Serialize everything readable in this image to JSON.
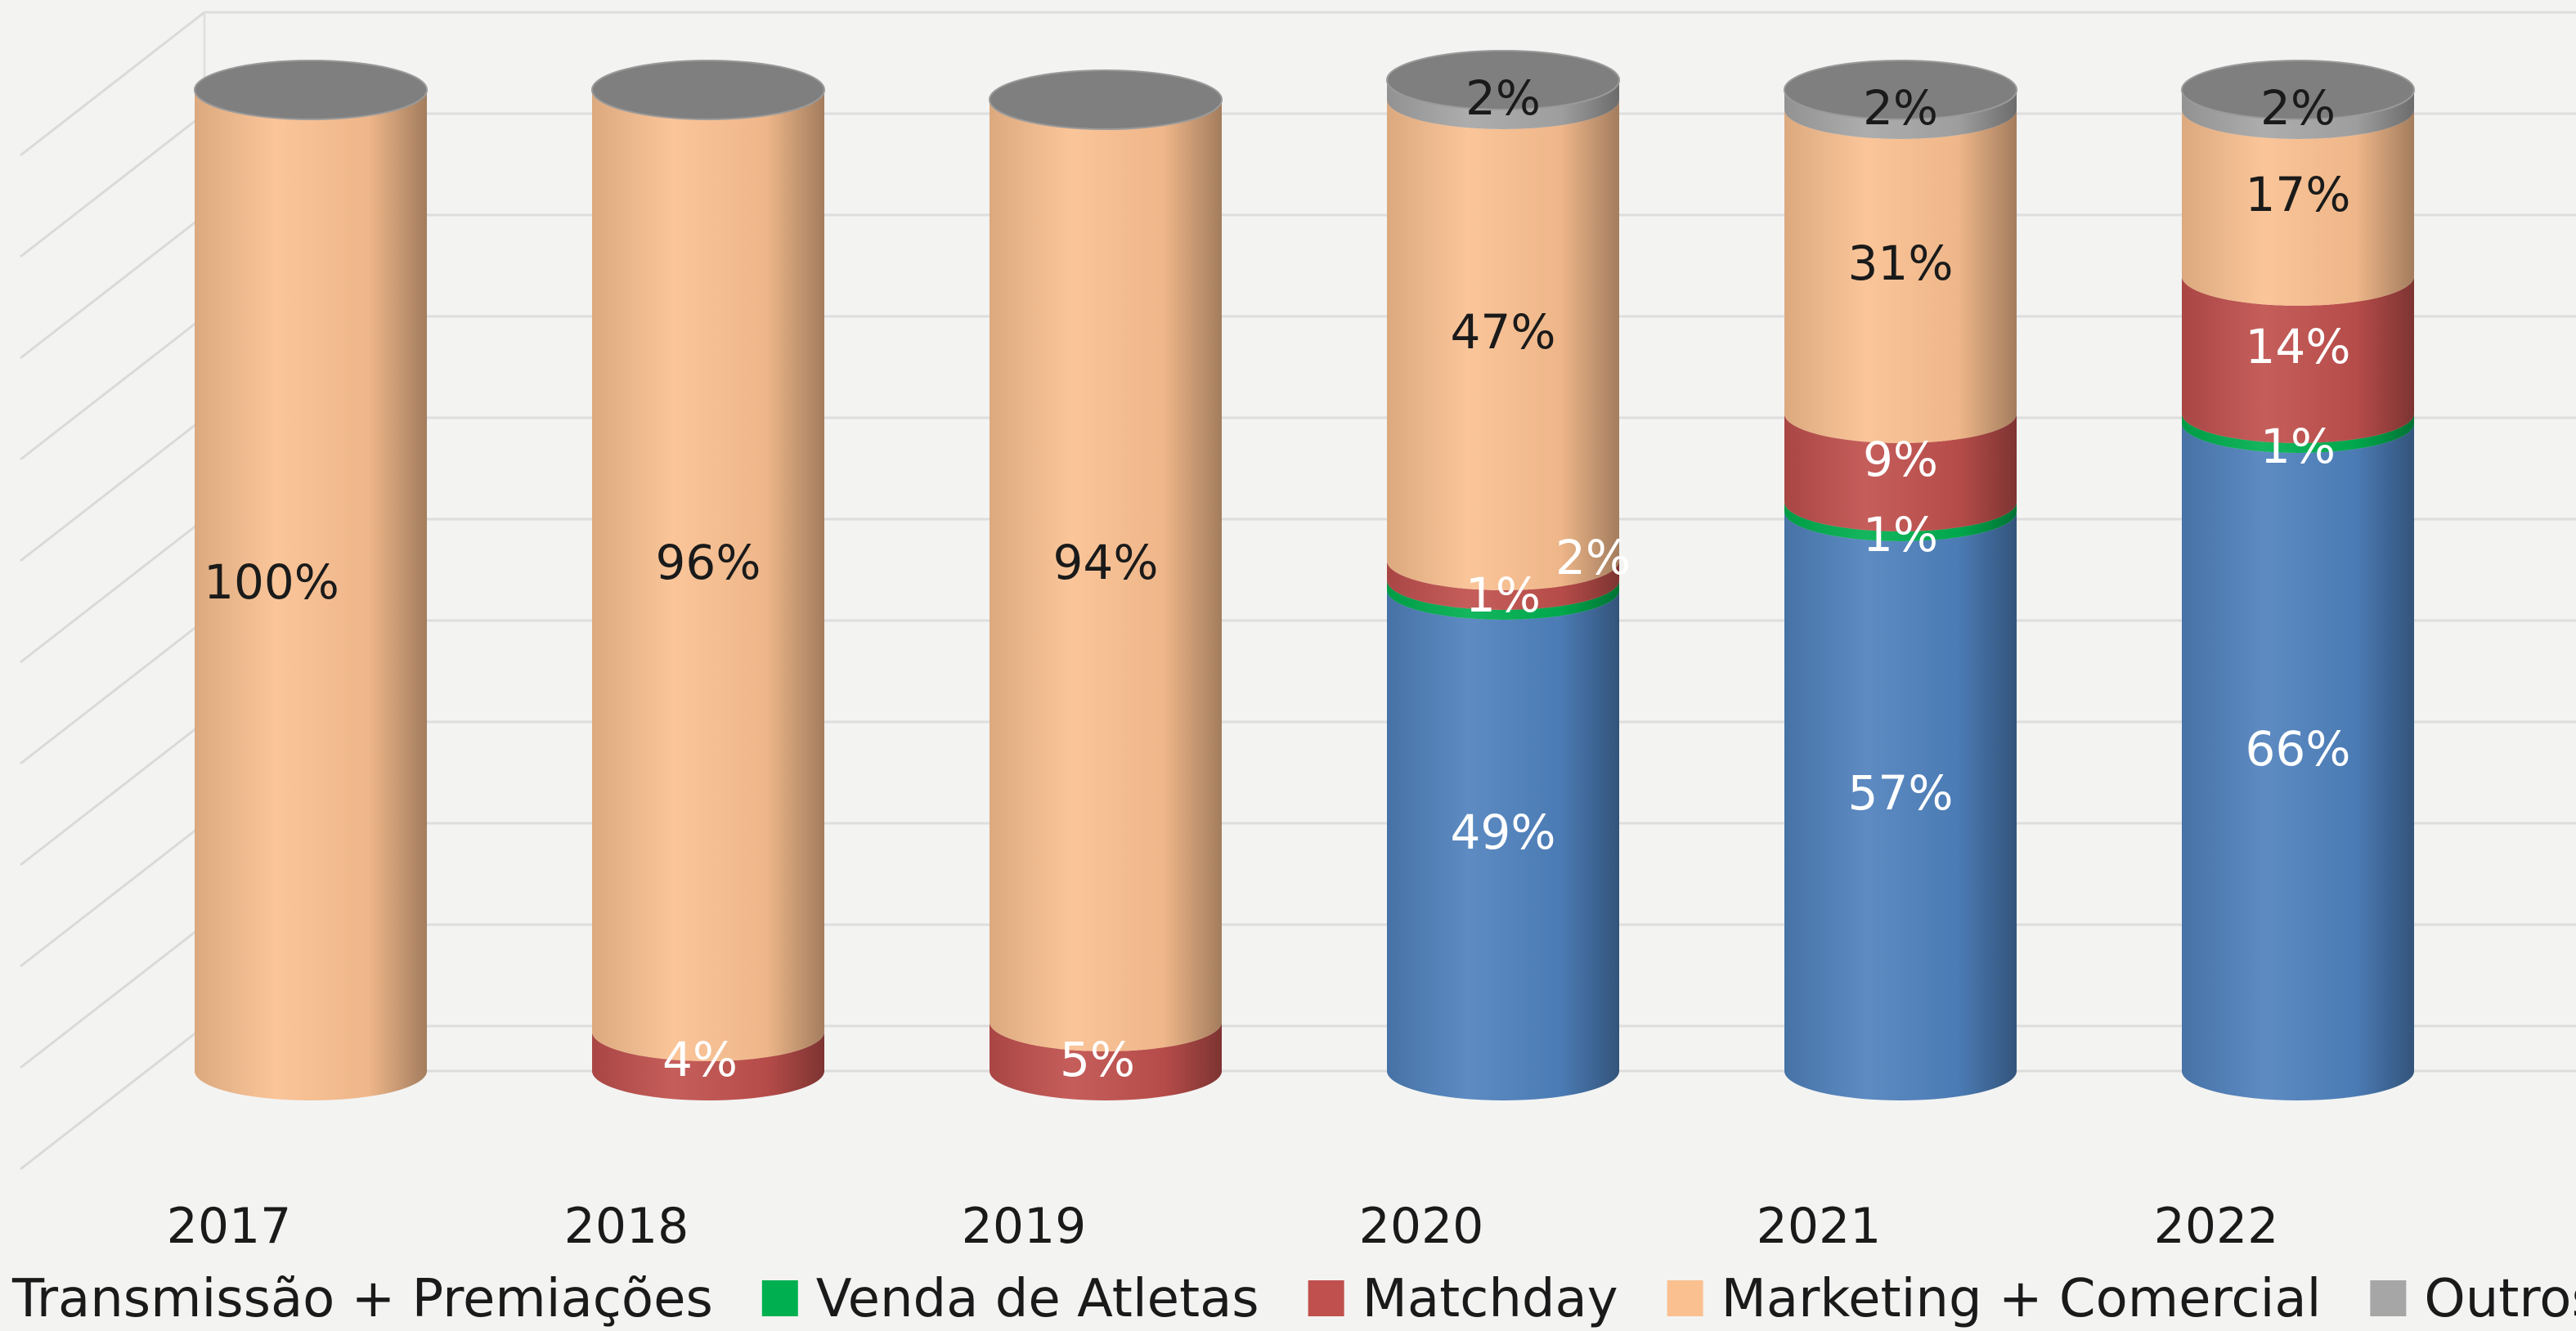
{
  "chart_data": {
    "type": "bar",
    "stacked": true,
    "shape": "cylinder",
    "categories": [
      "2017",
      "2018",
      "2019",
      "2020",
      "2021",
      "2022"
    ],
    "series": [
      {
        "name": "Transmissão + Premiações",
        "color": "#4f81bd",
        "values": [
          0,
          0,
          0,
          49,
          57,
          66
        ],
        "labels": [
          "",
          "",
          "",
          "49%",
          "57%",
          "66%"
        ]
      },
      {
        "name": "Venda de Atletas",
        "color": "#00b050",
        "values": [
          0,
          0,
          0,
          1,
          1,
          1
        ],
        "labels": [
          "",
          "",
          "",
          "1%",
          "1%",
          "1%"
        ]
      },
      {
        "name": "Matchday",
        "color": "#c0504d",
        "values": [
          0,
          4,
          5,
          2,
          9,
          14
        ],
        "labels": [
          "",
          "4%",
          "5%",
          "2%",
          "9%",
          "14%"
        ]
      },
      {
        "name": "Marketing + Comercial",
        "color": "#fac090",
        "values": [
          100,
          96,
          94,
          47,
          31,
          17
        ],
        "labels": [
          "100%",
          "96%",
          "94%",
          "47%",
          "31%",
          "17%"
        ]
      },
      {
        "name": "Outros",
        "color": "#a6a6a6",
        "values": [
          0,
          0,
          0,
          2,
          2,
          2
        ],
        "labels": [
          "",
          "",
          "",
          "2%",
          "2%",
          "2%"
        ]
      }
    ],
    "ylim": [
      0,
      100
    ],
    "grid": true,
    "legend_position": "bottom"
  }
}
